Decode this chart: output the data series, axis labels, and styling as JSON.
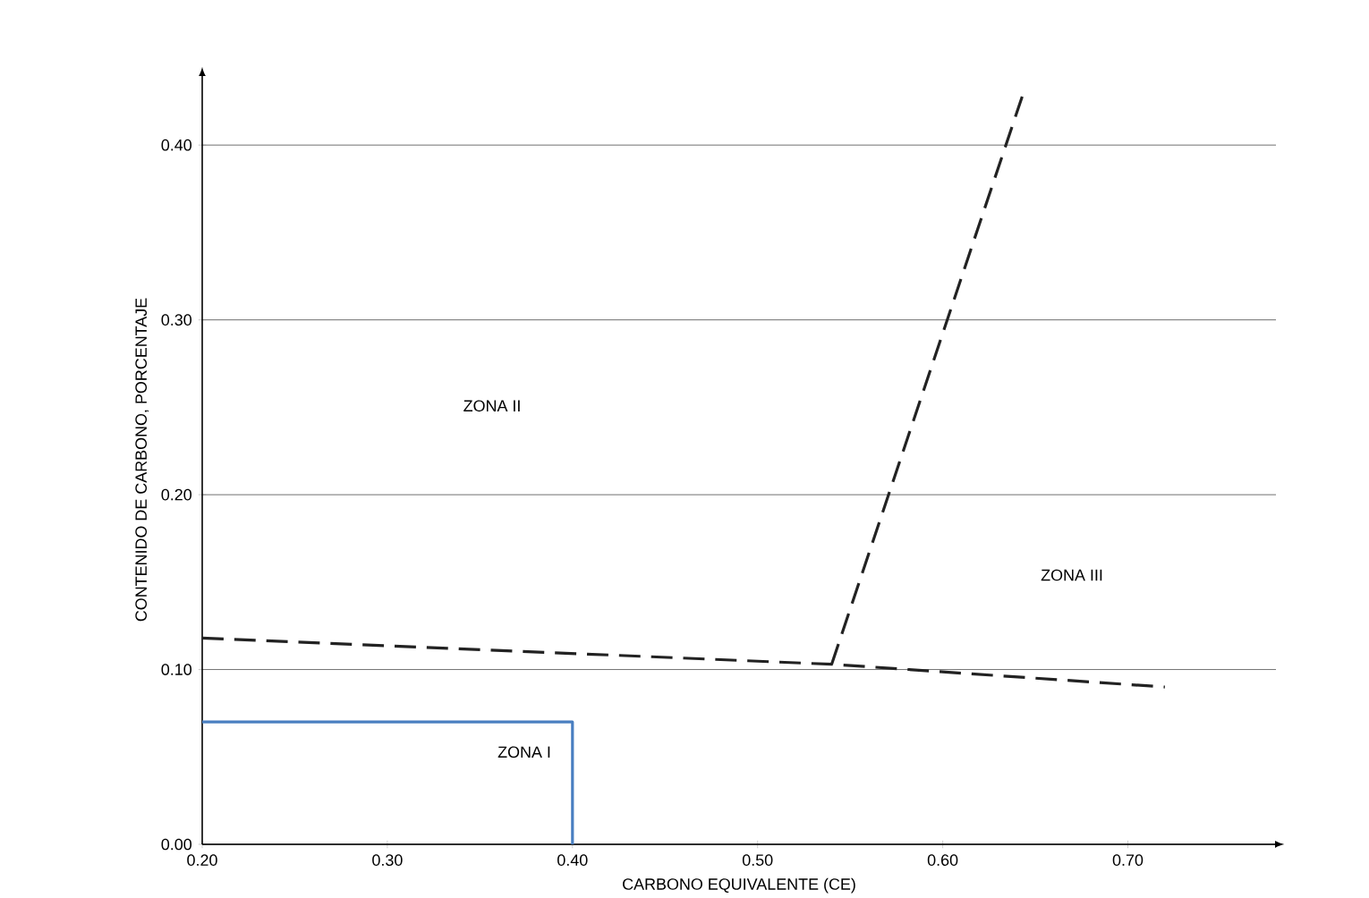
{
  "chart_data": {
    "type": "line",
    "xlabel": "CARBONO EQUIVALENTE (CE)",
    "ylabel": "CONTENIDO DE CARBONO, PORCENTAJE",
    "xlim": [
      0.2,
      0.78
    ],
    "ylim": [
      0,
      0.44
    ],
    "xticks": [
      {
        "value": 0.2,
        "label": "0.20"
      },
      {
        "value": 0.3,
        "label": "0.30"
      },
      {
        "value": 0.4,
        "label": "0.40"
      },
      {
        "value": 0.5,
        "label": "0.50"
      },
      {
        "value": 0.6,
        "label": "0.60"
      },
      {
        "value": 0.7,
        "label": "0.70"
      }
    ],
    "yticks": [
      {
        "value": 0,
        "label": "0.00"
      },
      {
        "value": 0.1,
        "label": "0.10"
      },
      {
        "value": 0.2,
        "label": "0.20"
      },
      {
        "value": 0.3,
        "label": "0.30"
      },
      {
        "value": 0.4,
        "label": "0.40"
      }
    ],
    "grid": "y",
    "series": [
      {
        "color": "#222222",
        "line_style": "dashed",
        "x": [
          0.2,
          0.54,
          0.72
        ],
        "values": [
          0.118,
          0.103,
          0.09
        ]
      },
      {
        "color": "#222222",
        "line_style": "dashed",
        "x": [
          0.54,
          0.643
        ],
        "values": [
          0.103,
          0.428
        ]
      },
      {
        "color": "#4a7fc1",
        "line_style": "solid",
        "x": [
          0.2,
          0.4,
          0.4
        ],
        "values": [
          0.07,
          0.07,
          0.0
        ]
      }
    ],
    "annotations": [
      "ZONA I",
      "ZONA II",
      "ZONA III"
    ]
  }
}
